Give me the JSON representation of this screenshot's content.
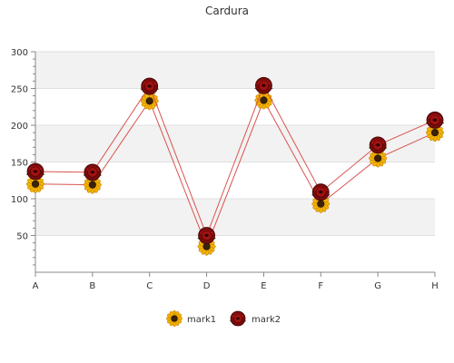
{
  "chart_data": {
    "type": "line",
    "title": "Cardura",
    "xlabel": "",
    "ylabel": "",
    "categories": [
      "A",
      "B",
      "C",
      "D",
      "E",
      "F",
      "G",
      "H"
    ],
    "ylim": [
      0,
      300
    ],
    "yticks": [
      50,
      100,
      150,
      200,
      250,
      300
    ],
    "grid": true,
    "legend_position": "bottom-center",
    "series": [
      {
        "name": "mark1",
        "values": [
          120,
          119,
          233,
          35,
          234,
          93,
          155,
          190
        ],
        "line_color": "#d9534f",
        "marker": "sunflower-icon"
      },
      {
        "name": "mark2",
        "values": [
          137,
          136,
          253,
          50,
          254,
          109,
          173,
          207
        ],
        "line_color": "#d9534f",
        "marker": "rose-icon"
      }
    ]
  }
}
